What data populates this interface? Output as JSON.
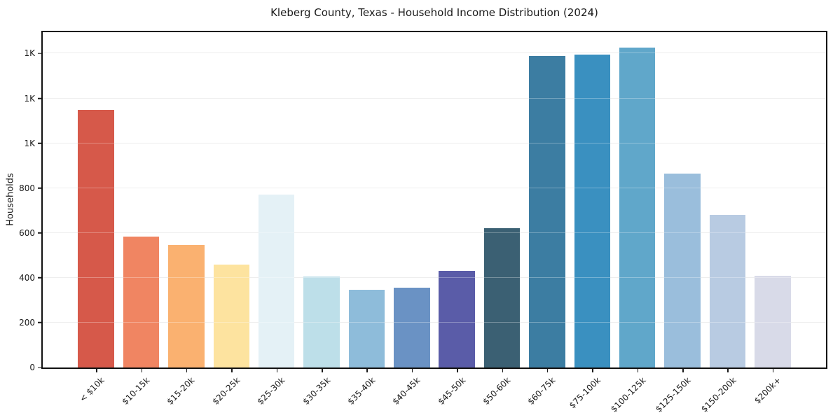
{
  "chart_data": {
    "type": "bar",
    "title": "Kleberg County, Texas - Household Income Distribution (2024)",
    "xlabel": "",
    "ylabel": "Households",
    "categories": [
      "< $10k",
      "$10-15k",
      "$15-20k",
      "$20-25k",
      "$25-30k",
      "$30-35k",
      "$35-40k",
      "$40-45k",
      "$45-50k",
      "$50-60k",
      "$60-75k",
      "$75-100k",
      "$100-125k",
      "$125-150k",
      "$150-200k",
      "$200k+"
    ],
    "values": [
      1150,
      585,
      545,
      460,
      770,
      405,
      345,
      355,
      430,
      620,
      1390,
      1395,
      1425,
      865,
      680,
      410
    ],
    "bar_colors": [
      "#d6594a",
      "#f08562",
      "#fab170",
      "#fde39f",
      "#e4f1f6",
      "#bddfe9",
      "#8ebcda",
      "#6a92c4",
      "#5a5ca8",
      "#3b6073",
      "#3c7da2",
      "#3a90c0",
      "#60a7ca",
      "#9abedc",
      "#b8cbe2",
      "#d8dae8"
    ],
    "ylim": [
      0,
      1495
    ],
    "yticks": [
      {
        "value": 0,
        "label": "0"
      },
      {
        "value": 200,
        "label": "200"
      },
      {
        "value": 400,
        "label": "400"
      },
      {
        "value": 600,
        "label": "600"
      },
      {
        "value": 800,
        "label": "800"
      },
      {
        "value": 1000,
        "label": "1K"
      },
      {
        "value": 1200,
        "label": "1K"
      },
      {
        "value": 1400,
        "label": "1K"
      }
    ],
    "grid": "horizontal",
    "legend": "none"
  }
}
